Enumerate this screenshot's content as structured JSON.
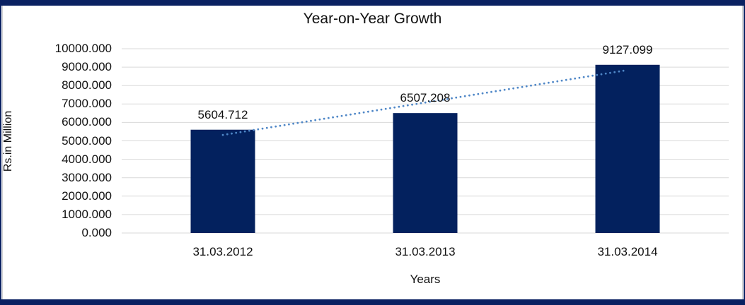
{
  "chart_data": {
    "type": "bar",
    "title": "Year-on-Year Growth",
    "categories": [
      "31.03.2012",
      "31.03.2013",
      "31.03.2014"
    ],
    "values": [
      5604.712,
      6507.208,
      9127.099
    ],
    "value_labels": [
      "5604.712",
      "6507.208",
      "9127.099"
    ],
    "series": [
      {
        "name": "Year-on-Year Growth",
        "values": [
          5604.712,
          6507.208,
          9127.099
        ]
      }
    ],
    "xlabel": "Years",
    "ylabel": "Rs.in Million",
    "ylim": [
      0,
      10000
    ],
    "ytick_step": 1000,
    "ytick_labels": [
      "0.000",
      "1000.000",
      "2000.000",
      "3000.000",
      "4000.000",
      "5000.000",
      "6000.000",
      "7000.000",
      "8000.000",
      "9000.000",
      "10000.000"
    ],
    "grid": "horizontal",
    "legend": "none",
    "data_labels": "above-bars",
    "trendline": {
      "type": "linear",
      "style": "dotted",
      "color": "#4F87C7"
    },
    "colors": {
      "bar": "#03215E",
      "gridline": "#D9D9D9",
      "chart_border": "#D3D3D3",
      "outer_frame": "#0A2162",
      "text": "#111111",
      "background": "#FFFFFF"
    }
  }
}
